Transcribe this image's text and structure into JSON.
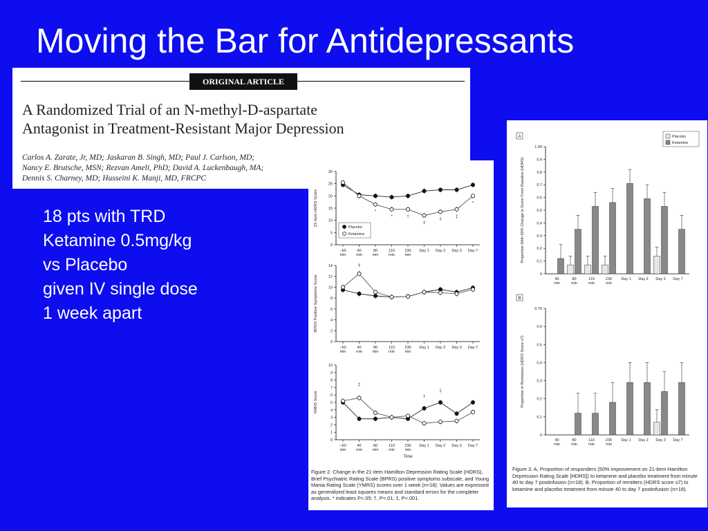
{
  "slide": {
    "title": "Moving the Bar for Antidepressants",
    "bullets": [
      "18 pts with TRD",
      "Ketamine 0.5mg/kg",
      "vs Placebo",
      "given IV single dose",
      "1 week apart"
    ]
  },
  "article": {
    "badge": "ORIGINAL ARTICLE",
    "headline_line1": "A Randomized Trial of an N-methyl-D-aspartate",
    "headline_line2": "Antagonist in Treatment-Resistant Major Depression",
    "authors_line1": "Carlos A. Zarate, Jr, MD; Jaskaran B. Singh, MD; Paul J. Carlson, MD;",
    "authors_line2": "Nancy E. Brutsche, MSN; Rezvan Ameli, PhD; David A. Luckenbaugh, MA;",
    "authors_line3": "Dennis S. Charney, MD; Husseini K. Manji, MD, FRCPC"
  },
  "colors": {
    "background": "#0d0df0",
    "text": "#ffffff",
    "ketamine_bar": "#888888",
    "placebo_bar": "#e6e6e6"
  },
  "figure2": {
    "x_ticks": [
      "−60 min",
      "40 min",
      "80 min",
      "110 min",
      "230 min",
      "Day 1",
      "Day 2",
      "Day 3",
      "Day 7"
    ],
    "xlabel": "Time",
    "legend": [
      "Placebo",
      "Ketamine"
    ],
    "caption": "Figure 2. Change in the 21-item Hamilton Depression Rating Scale (HDRS), Brief Psychiatric Rating Scale (BPRS) positive symptoms subscale, and Young Mania Rating Scale (YMRS) scores over 1 week (n=18). Values are expressed as generalized least squares means and standard errors for the completer analysis. * indicates P<.05; †, P<.01; ‡, P<.001."
  },
  "figure3": {
    "x_ticks": [
      "40 min",
      "80 min",
      "110 min",
      "230 min",
      "Day 1",
      "Day 2",
      "Day 3",
      "Day 7"
    ],
    "legend": [
      "Placebo",
      "Ketamine"
    ],
    "caption": "Figure 3. A, Proportion of responders (50% improvement on 21-item Hamilton Depression Rating Scale [HDRS]) to ketamine and placebo treatment from minute 40 to day 7 postinfusion (n=18). B, Proportion of remitters (HDRS score ≤7) to ketamine and placebo treatment from minute 40 to day 7 postinfusion (n=18)."
  },
  "chart_data": [
    {
      "type": "line",
      "panel": "Figure 2 top",
      "ylabel": "21-Item HDRS Score",
      "ylim": [
        0,
        30
      ],
      "yticks": [
        0,
        5,
        10,
        15,
        20,
        25,
        30
      ],
      "x": [
        "−60 min",
        "40 min",
        "80 min",
        "110 min",
        "230 min",
        "Day 1",
        "Day 2",
        "Day 3",
        "Day 7"
      ],
      "series": [
        {
          "name": "Placebo",
          "values": [
            24.5,
            20.5,
            20,
            19.5,
            20,
            22,
            22.5,
            22.5,
            24.5
          ]
        },
        {
          "name": "Ketamine",
          "values": [
            25.5,
            20,
            16.5,
            14.5,
            14.5,
            12,
            13.5,
            14.5,
            20
          ]
        }
      ],
      "annotations": [
        "*",
        "*",
        "†",
        "‡",
        "‡",
        "‡",
        "*"
      ]
    },
    {
      "type": "line",
      "panel": "Figure 2 middle",
      "ylabel": "BPRS Positive Symptoms Score",
      "ylim": [
        0,
        14
      ],
      "yticks": [
        0,
        2,
        4,
        6,
        8,
        10,
        12,
        14
      ],
      "x": [
        "−60 min",
        "40 min",
        "80 min",
        "110 min",
        "230 min",
        "Day 1",
        "Day 2",
        "Day 3",
        "Day 7"
      ],
      "series": [
        {
          "name": "Placebo",
          "values": [
            9.5,
            8.8,
            8.4,
            8.2,
            8.3,
            9.1,
            9.6,
            9.1,
            9.9
          ]
        },
        {
          "name": "Ketamine",
          "values": [
            10,
            12.5,
            9.1,
            8.2,
            8.3,
            9.1,
            9,
            8.8,
            9.6
          ]
        }
      ],
      "annotations": [
        "‡"
      ]
    },
    {
      "type": "line",
      "panel": "Figure 2 bottom",
      "ylabel": "YMRS Score",
      "ylim": [
        0,
        10
      ],
      "yticks": [
        0,
        1,
        2,
        3,
        4,
        5,
        6,
        7,
        8,
        9,
        10
      ],
      "x": [
        "−60 min",
        "40 min",
        "80 min",
        "110 min",
        "230 min",
        "Day 1",
        "Day 2",
        "Day 3",
        "Day 7"
      ],
      "series": [
        {
          "name": "Placebo",
          "values": [
            5,
            2.8,
            2.8,
            3,
            2.8,
            4.2,
            5,
            3.5,
            5
          ]
        },
        {
          "name": "Ketamine",
          "values": [
            5.2,
            5.6,
            3.6,
            3,
            3.2,
            2.2,
            2.4,
            2.5,
            3.7
          ]
        }
      ],
      "annotations": [
        "‡",
        "†",
        "‡"
      ]
    },
    {
      "type": "bar",
      "panel": "Figure 3 A",
      "panel_label": "A",
      "ylabel": "Proportion With 50% Change in Score From Baseline (HDRS)",
      "ylim": [
        0,
        1
      ],
      "yticks": [
        "0",
        "0.1",
        "0.2",
        "0.3",
        "0.4",
        "0.5",
        "0.6",
        "0.7",
        "0.8",
        "0.9",
        "1.00"
      ],
      "categories": [
        "40 min",
        "80 min",
        "110 min",
        "230 min",
        "Day 1",
        "Day 2",
        "Day 3",
        "Day 7"
      ],
      "series": [
        {
          "name": "Placebo",
          "values": [
            0,
            0.07,
            0.07,
            0.07,
            0,
            0,
            0.14,
            0
          ]
        },
        {
          "name": "Ketamine",
          "values": [
            0.12,
            0.35,
            0.53,
            0.56,
            0.71,
            0.59,
            0.53,
            0.35
          ]
        }
      ]
    },
    {
      "type": "bar",
      "panel": "Figure 3 B",
      "panel_label": "B",
      "ylabel": "Proportion in Remission (HDRS Score ≤7)",
      "ylim": [
        0,
        0.7
      ],
      "yticks": [
        "0",
        "0.1",
        "0.2",
        "0.3",
        "0.4",
        "0.5",
        "0.6",
        "0.70"
      ],
      "categories": [
        "40 min",
        "80 min",
        "110 min",
        "230 min",
        "Day 1",
        "Day 2",
        "Day 3",
        "Day 7"
      ],
      "series": [
        {
          "name": "Placebo",
          "values": [
            0,
            0,
            0,
            0,
            0,
            0,
            0.07,
            0
          ]
        },
        {
          "name": "Ketamine",
          "values": [
            0,
            0.12,
            0.12,
            0.18,
            0.29,
            0.29,
            0.24,
            0.29
          ]
        }
      ]
    }
  ]
}
